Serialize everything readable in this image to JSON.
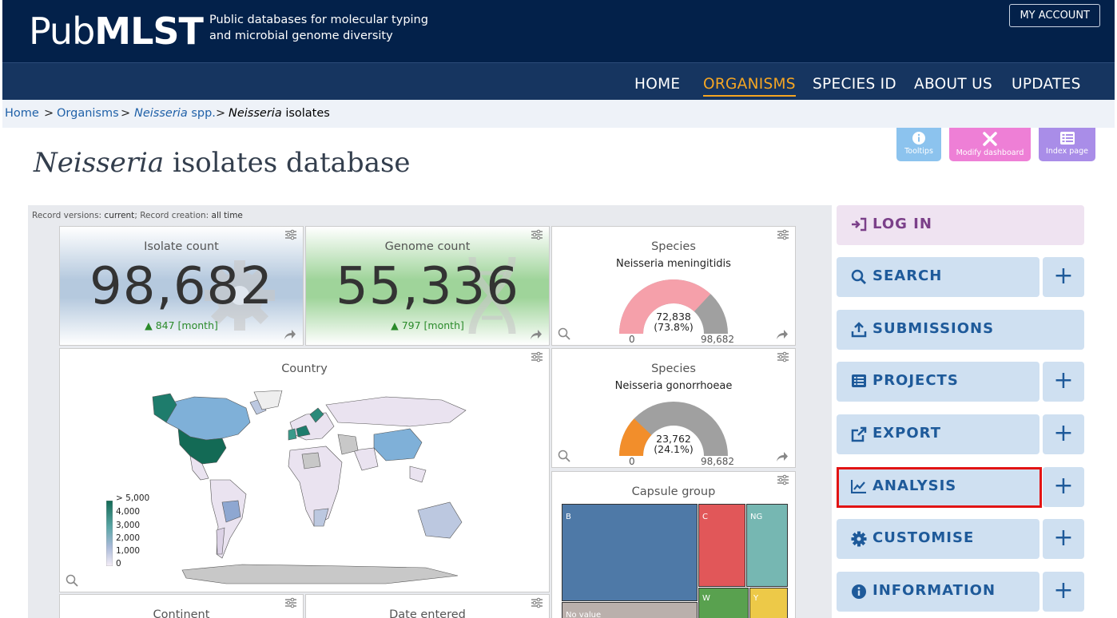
{
  "header": {
    "logo_light": "Pub",
    "logo_bold": "MLST",
    "tagline_line1": "Public databases for molecular typing",
    "tagline_line2": "and microbial genome diversity",
    "account_label": "MY ACCOUNT"
  },
  "nav": [
    {
      "label": "HOME"
    },
    {
      "label": "ORGANISMS"
    },
    {
      "label": "SPECIES ID"
    },
    {
      "label": "ABOUT US"
    },
    {
      "label": "UPDATES"
    }
  ],
  "breadcrumb": {
    "home": "Home",
    "organisms": "Organisms",
    "genus": "Neisseria",
    "genus_suffix": "spp.",
    "current_italic": "Neisseria",
    "current_suffix": "isolates",
    "separator": ">"
  },
  "page_title": {
    "italic": "Neisseria",
    "rest": "isolates database"
  },
  "toolbar": {
    "tooltips": "Tooltips",
    "modify": "Modify dashboard",
    "index": "Index page"
  },
  "dashboard": {
    "record_info_prefix": "Record versions: ",
    "record_versions": "current",
    "record_info_mid": "; Record creation: ",
    "record_creation": "all time",
    "isolate": {
      "title": "Isolate count",
      "value": "98,682",
      "delta": "847 [month]"
    },
    "genome": {
      "title": "Genome count",
      "value": "55,336",
      "delta": "797 [month]"
    },
    "species1": {
      "title": "Species",
      "subtitle": "Neisseria meningitidis",
      "value": "72,838",
      "percent": "(73.8%)",
      "min": "0",
      "max": "98,682",
      "fraction": 0.738
    },
    "species2": {
      "title": "Species",
      "subtitle": "Neisseria gonorrhoeae",
      "value": "23,762",
      "percent": "(24.1%)",
      "min": "0",
      "max": "98,682",
      "fraction": 0.241
    },
    "country": {
      "title": "Country",
      "legend": [
        "> 5,000",
        "4,000",
        "3,000",
        "2,000",
        "1,000",
        "0"
      ]
    },
    "capsule": {
      "title": "Capsule group",
      "cells": [
        "B",
        "C",
        "NG",
        "W",
        "Y",
        "No value"
      ]
    },
    "continent": {
      "title": "Continent"
    },
    "date": {
      "title": "Date entered"
    }
  },
  "side_menu": [
    {
      "label": "LOG IN"
    },
    {
      "label": "SEARCH"
    },
    {
      "label": "SUBMISSIONS"
    },
    {
      "label": "PROJECTS"
    },
    {
      "label": "EXPORT"
    },
    {
      "label": "ANALYSIS"
    },
    {
      "label": "CUSTOMISE"
    },
    {
      "label": "INFORMATION"
    }
  ],
  "plus_symbol": "+",
  "colors": {
    "header_bg": "#03214a",
    "nav_bg": "#163560",
    "active_nav": "#f5a623",
    "menu_bg": "#cfe0f1",
    "menu_text": "#1e5a9a",
    "login_bg": "#efe3f1",
    "highlight": "#e21414"
  }
}
